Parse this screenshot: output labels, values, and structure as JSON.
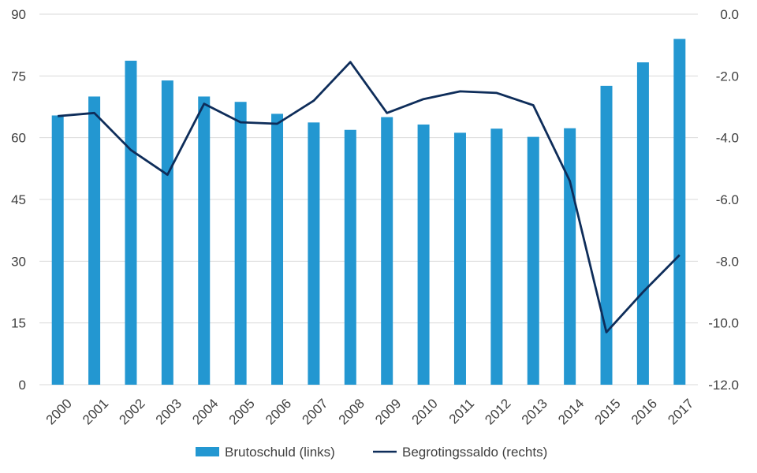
{
  "chart_data": {
    "type": "bar",
    "categories": [
      "2000",
      "2001",
      "2002",
      "2003",
      "2004",
      "2005",
      "2006",
      "2007",
      "2008",
      "2009",
      "2010",
      "2011",
      "2012",
      "2013",
      "2014",
      "2015",
      "2016",
      "2017"
    ],
    "series": [
      {
        "name": "Brutoschuld (links)",
        "type": "bar",
        "axis": "left",
        "color": "#2397d1",
        "values": [
          65.4,
          70.0,
          78.7,
          73.9,
          70.0,
          68.7,
          65.8,
          63.7,
          61.9,
          65.0,
          63.2,
          61.2,
          62.2,
          60.2,
          62.3,
          72.6,
          78.3,
          84.0
        ]
      },
      {
        "name": "Begrotingssaldo (rechts)",
        "type": "line",
        "axis": "right",
        "color": "#0e2d5a",
        "values": [
          -3.3,
          -3.2,
          -4.4,
          -5.2,
          -2.9,
          -3.5,
          -3.55,
          -2.8,
          -1.55,
          -3.2,
          -2.75,
          -2.5,
          -2.55,
          -2.95,
          -5.4,
          -10.3,
          -9.0,
          -7.8
        ]
      }
    ],
    "y_left": {
      "min": 0,
      "max": 90,
      "ticks": [
        "0",
        "15",
        "30",
        "45",
        "60",
        "75",
        "90"
      ]
    },
    "y_right": {
      "min": -12,
      "max": 0,
      "ticks": [
        "-12.0",
        "-10.0",
        "-8.0",
        "-6.0",
        "-4.0",
        "-2.0",
        "0.0"
      ]
    },
    "grid": true,
    "legend_position": "bottom"
  }
}
